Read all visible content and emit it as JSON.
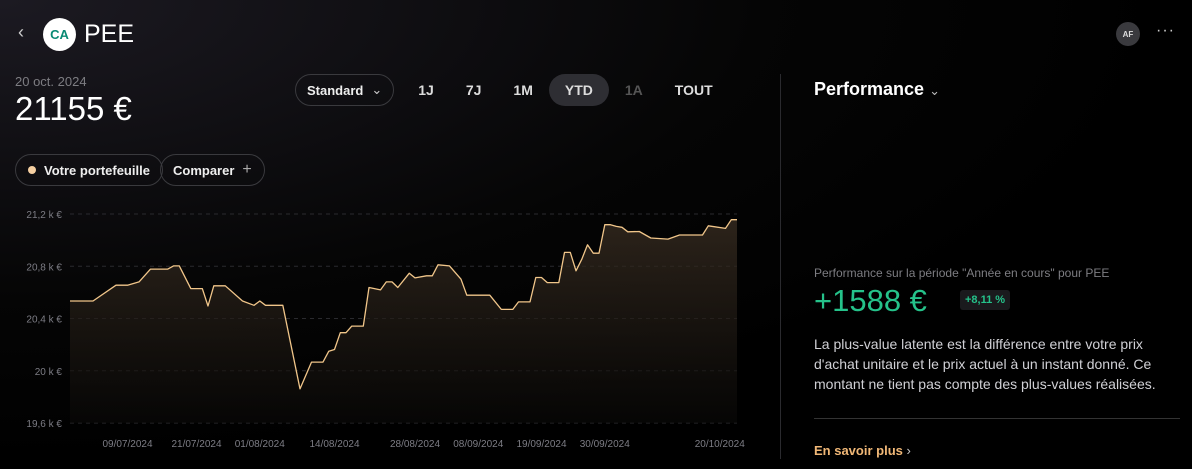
{
  "header": {
    "title": "PEE",
    "back_icon": "chevron-left-icon",
    "logo": "CA",
    "avatar": "AF",
    "more": "···"
  },
  "summary": {
    "date": "20 oct. 2024",
    "value": "21155 €"
  },
  "controls": {
    "view_select": "Standard",
    "periods": [
      "1J",
      "7J",
      "1M",
      "YTD",
      "1A",
      "TOUT"
    ],
    "active_period": "YTD",
    "disabled_period": "1A",
    "portfolio": "Votre portefeuille",
    "compare": "Comparer"
  },
  "performance": {
    "title": "Performance",
    "subtitle": "Performance sur la période \"Année en cours\" pour PEE",
    "value": "+1588 €",
    "percent": "+8,11 %",
    "description": "La plus-value latente est la différence entre votre prix d'achat unitaire et le prix actuel à un instant donné. Ce montant ne tient pas compte des plus-values réalisées.",
    "link": "En savoir plus"
  },
  "colors": {
    "line": "#f1c68a",
    "positive": "#25c28a",
    "accent": "#f1b877"
  },
  "chart_data": {
    "type": "area",
    "ylim": [
      19600,
      21200
    ],
    "yticks": [
      {
        "v": 21200,
        "label": "21,2 k €"
      },
      {
        "v": 20800,
        "label": "20,8 k €"
      },
      {
        "v": 20400,
        "label": "20,4 k €"
      },
      {
        "v": 20000,
        "label": "20 k €"
      },
      {
        "v": 19600,
        "label": "19,6 k €"
      }
    ],
    "xticks": [
      {
        "d": "2024-07-09",
        "label": "09/07/2024"
      },
      {
        "d": "2024-07-21",
        "label": "21/07/2024"
      },
      {
        "d": "2024-08-01",
        "label": "01/08/2024"
      },
      {
        "d": "2024-08-14",
        "label": "14/08/2024"
      },
      {
        "d": "2024-08-28",
        "label": "28/08/2024"
      },
      {
        "d": "2024-09-08",
        "label": "08/09/2024"
      },
      {
        "d": "2024-09-19",
        "label": "19/09/2024"
      },
      {
        "d": "2024-09-30",
        "label": "30/09/2024"
      },
      {
        "d": "2024-10-20",
        "label": "20/10/2024"
      }
    ],
    "grid": true,
    "series": [
      {
        "points": [
          [
            "2024-06-29",
            20534
          ],
          [
            "2024-07-03",
            20534
          ],
          [
            "2024-07-07",
            20655
          ],
          [
            "2024-07-09",
            20655
          ],
          [
            "2024-07-11",
            20680
          ],
          [
            "2024-07-13",
            20778
          ],
          [
            "2024-07-16",
            20778
          ],
          [
            "2024-07-17",
            20803
          ],
          [
            "2024-07-18",
            20803
          ],
          [
            "2024-07-20",
            20629
          ],
          [
            "2024-07-22",
            20629
          ],
          [
            "2024-07-23",
            20496
          ],
          [
            "2024-07-24",
            20650
          ],
          [
            "2024-07-26",
            20650
          ],
          [
            "2024-07-29",
            20534
          ],
          [
            "2024-07-31",
            20501
          ],
          [
            "2024-08-01",
            20534
          ],
          [
            "2024-08-02",
            20501
          ],
          [
            "2024-08-05",
            20501
          ],
          [
            "2024-08-08",
            19861
          ],
          [
            "2024-08-10",
            20066
          ],
          [
            "2024-08-12",
            20066
          ],
          [
            "2024-08-13",
            20150
          ],
          [
            "2024-08-14",
            20163
          ],
          [
            "2024-08-15",
            20291
          ],
          [
            "2024-08-16",
            20291
          ],
          [
            "2024-08-17",
            20342
          ],
          [
            "2024-08-19",
            20342
          ],
          [
            "2024-08-20",
            20637
          ],
          [
            "2024-08-22",
            20619
          ],
          [
            "2024-08-23",
            20680
          ],
          [
            "2024-08-24",
            20680
          ],
          [
            "2024-08-25",
            20637
          ],
          [
            "2024-08-27",
            20747
          ],
          [
            "2024-08-28",
            20711
          ],
          [
            "2024-08-30",
            20727
          ],
          [
            "2024-08-31",
            20727
          ],
          [
            "2024-09-01",
            20811
          ],
          [
            "2024-09-03",
            20803
          ],
          [
            "2024-09-05",
            20701
          ],
          [
            "2024-09-06",
            20578
          ],
          [
            "2024-09-10",
            20578
          ],
          [
            "2024-09-12",
            20470
          ],
          [
            "2024-09-14",
            20470
          ],
          [
            "2024-09-15",
            20527
          ],
          [
            "2024-09-17",
            20527
          ],
          [
            "2024-09-18",
            20714
          ],
          [
            "2024-09-19",
            20714
          ],
          [
            "2024-09-20",
            20675
          ],
          [
            "2024-09-22",
            20675
          ],
          [
            "2024-09-23",
            20906
          ],
          [
            "2024-09-24",
            20906
          ],
          [
            "2024-09-25",
            20765
          ],
          [
            "2024-09-26",
            20854
          ],
          [
            "2024-09-27",
            20964
          ],
          [
            "2024-09-28",
            20900
          ],
          [
            "2024-09-29",
            20900
          ],
          [
            "2024-09-30",
            21118
          ],
          [
            "2024-10-01",
            21118
          ],
          [
            "2024-10-02",
            21105
          ],
          [
            "2024-10-03",
            21098
          ],
          [
            "2024-10-04",
            21064
          ],
          [
            "2024-10-06",
            21066
          ],
          [
            "2024-10-08",
            21016
          ],
          [
            "2024-10-11",
            21008
          ],
          [
            "2024-10-13",
            21039
          ],
          [
            "2024-10-17",
            21039
          ],
          [
            "2024-10-18",
            21110
          ],
          [
            "2024-10-21",
            21090
          ],
          [
            "2024-10-22",
            21156
          ],
          [
            "2024-10-23",
            21156
          ]
        ]
      }
    ]
  }
}
